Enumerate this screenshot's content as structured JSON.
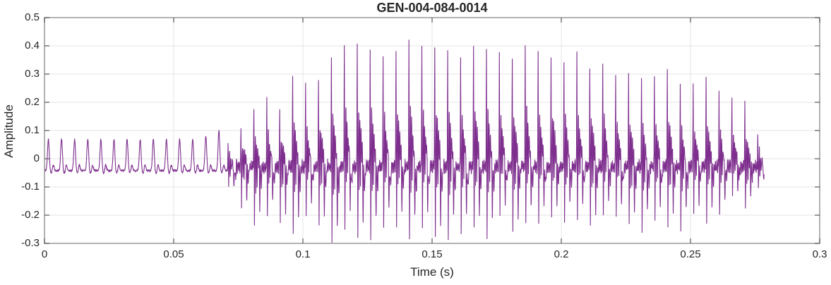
{
  "colors": {
    "line": "#7E2F8E",
    "grid": "#E6E6E6",
    "axis_box": "#999999",
    "tick": "#555555",
    "text": "#262626",
    "background": "#FFFFFF"
  },
  "chart_data": {
    "type": "line",
    "title": "GEN-004-084-0014",
    "xlabel": "Time (s)",
    "ylabel": "Amplitude",
    "xlim": [
      0,
      0.3
    ],
    "ylim": [
      -0.3,
      0.5
    ],
    "xticks": [
      0,
      0.05,
      0.1,
      0.15,
      0.2,
      0.25,
      0.3
    ],
    "xtick_labels": [
      "0",
      "0.05",
      "0.1",
      "0.15",
      "0.2",
      "0.25",
      "0.3"
    ],
    "yticks": [
      -0.3,
      -0.2,
      -0.1,
      0,
      0.1,
      0.2,
      0.3,
      0.4,
      0.5
    ],
    "ytick_labels": [
      "-0.3",
      "-0.2",
      "-0.1",
      "0",
      "0.1",
      "0.2",
      "0.3",
      "0.4",
      "0.5"
    ],
    "grid": true,
    "legend": false,
    "waveform": {
      "kind": "speech-audio-waveform",
      "prelude_hz": 197,
      "fundamental_hz": 200,
      "t_voiced_start": 0.0708,
      "t_end": 0.2785,
      "prelude": {
        "base": -0.042,
        "trough_dip": 0.01,
        "secondary_bump": 0.022,
        "peak_env": [
          [
            0,
            0.112
          ],
          [
            0.058,
            0.112
          ],
          [
            0.066,
            0.132
          ],
          [
            0.0708,
            0.168
          ]
        ]
      },
      "burst_base": -0.028,
      "upper_envelope": [
        [
          0.073,
          0.1
        ],
        [
          0.0755,
          0.15
        ],
        [
          0.079,
          0.19
        ],
        [
          0.083,
          0.2
        ],
        [
          0.087,
          0.26
        ],
        [
          0.0915,
          0.26
        ],
        [
          0.096,
          0.31
        ],
        [
          0.101,
          0.33
        ],
        [
          0.106,
          0.36
        ],
        [
          0.112,
          0.435
        ],
        [
          0.118,
          0.44
        ],
        [
          0.124,
          0.42
        ],
        [
          0.131,
          0.43
        ],
        [
          0.14,
          0.455
        ],
        [
          0.147,
          0.44
        ],
        [
          0.155,
          0.425
        ],
        [
          0.163,
          0.43
        ],
        [
          0.17,
          0.43
        ],
        [
          0.178,
          0.445
        ],
        [
          0.186,
          0.43
        ],
        [
          0.194,
          0.42
        ],
        [
          0.202,
          0.415
        ],
        [
          0.21,
          0.4
        ],
        [
          0.218,
          0.385
        ],
        [
          0.226,
          0.365
        ],
        [
          0.234,
          0.35
        ],
        [
          0.242,
          0.335
        ],
        [
          0.25,
          0.32
        ],
        [
          0.257,
          0.3
        ],
        [
          0.263,
          0.285
        ],
        [
          0.268,
          0.26
        ],
        [
          0.272,
          0.22
        ],
        [
          0.2755,
          0.15
        ],
        [
          0.2785,
          0.06
        ]
      ],
      "lower_envelope": [
        [
          0.071,
          -0.08
        ],
        [
          0.074,
          -0.17
        ],
        [
          0.078,
          -0.19
        ],
        [
          0.083,
          -0.21
        ],
        [
          0.09,
          -0.24
        ],
        [
          0.1,
          -0.25
        ],
        [
          0.108,
          -0.26
        ],
        [
          0.116,
          -0.28
        ],
        [
          0.124,
          -0.27
        ],
        [
          0.132,
          -0.275
        ],
        [
          0.142,
          -0.265
        ],
        [
          0.152,
          -0.255
        ],
        [
          0.162,
          -0.25
        ],
        [
          0.172,
          -0.24
        ],
        [
          0.182,
          -0.235
        ],
        [
          0.192,
          -0.23
        ],
        [
          0.202,
          -0.225
        ],
        [
          0.212,
          -0.22
        ],
        [
          0.222,
          -0.22
        ],
        [
          0.232,
          -0.24
        ],
        [
          0.242,
          -0.23
        ],
        [
          0.252,
          -0.21
        ],
        [
          0.26,
          -0.185
        ],
        [
          0.266,
          -0.16
        ],
        [
          0.271,
          -0.14
        ],
        [
          0.2755,
          -0.12
        ],
        [
          0.2785,
          -0.1
        ]
      ]
    }
  }
}
